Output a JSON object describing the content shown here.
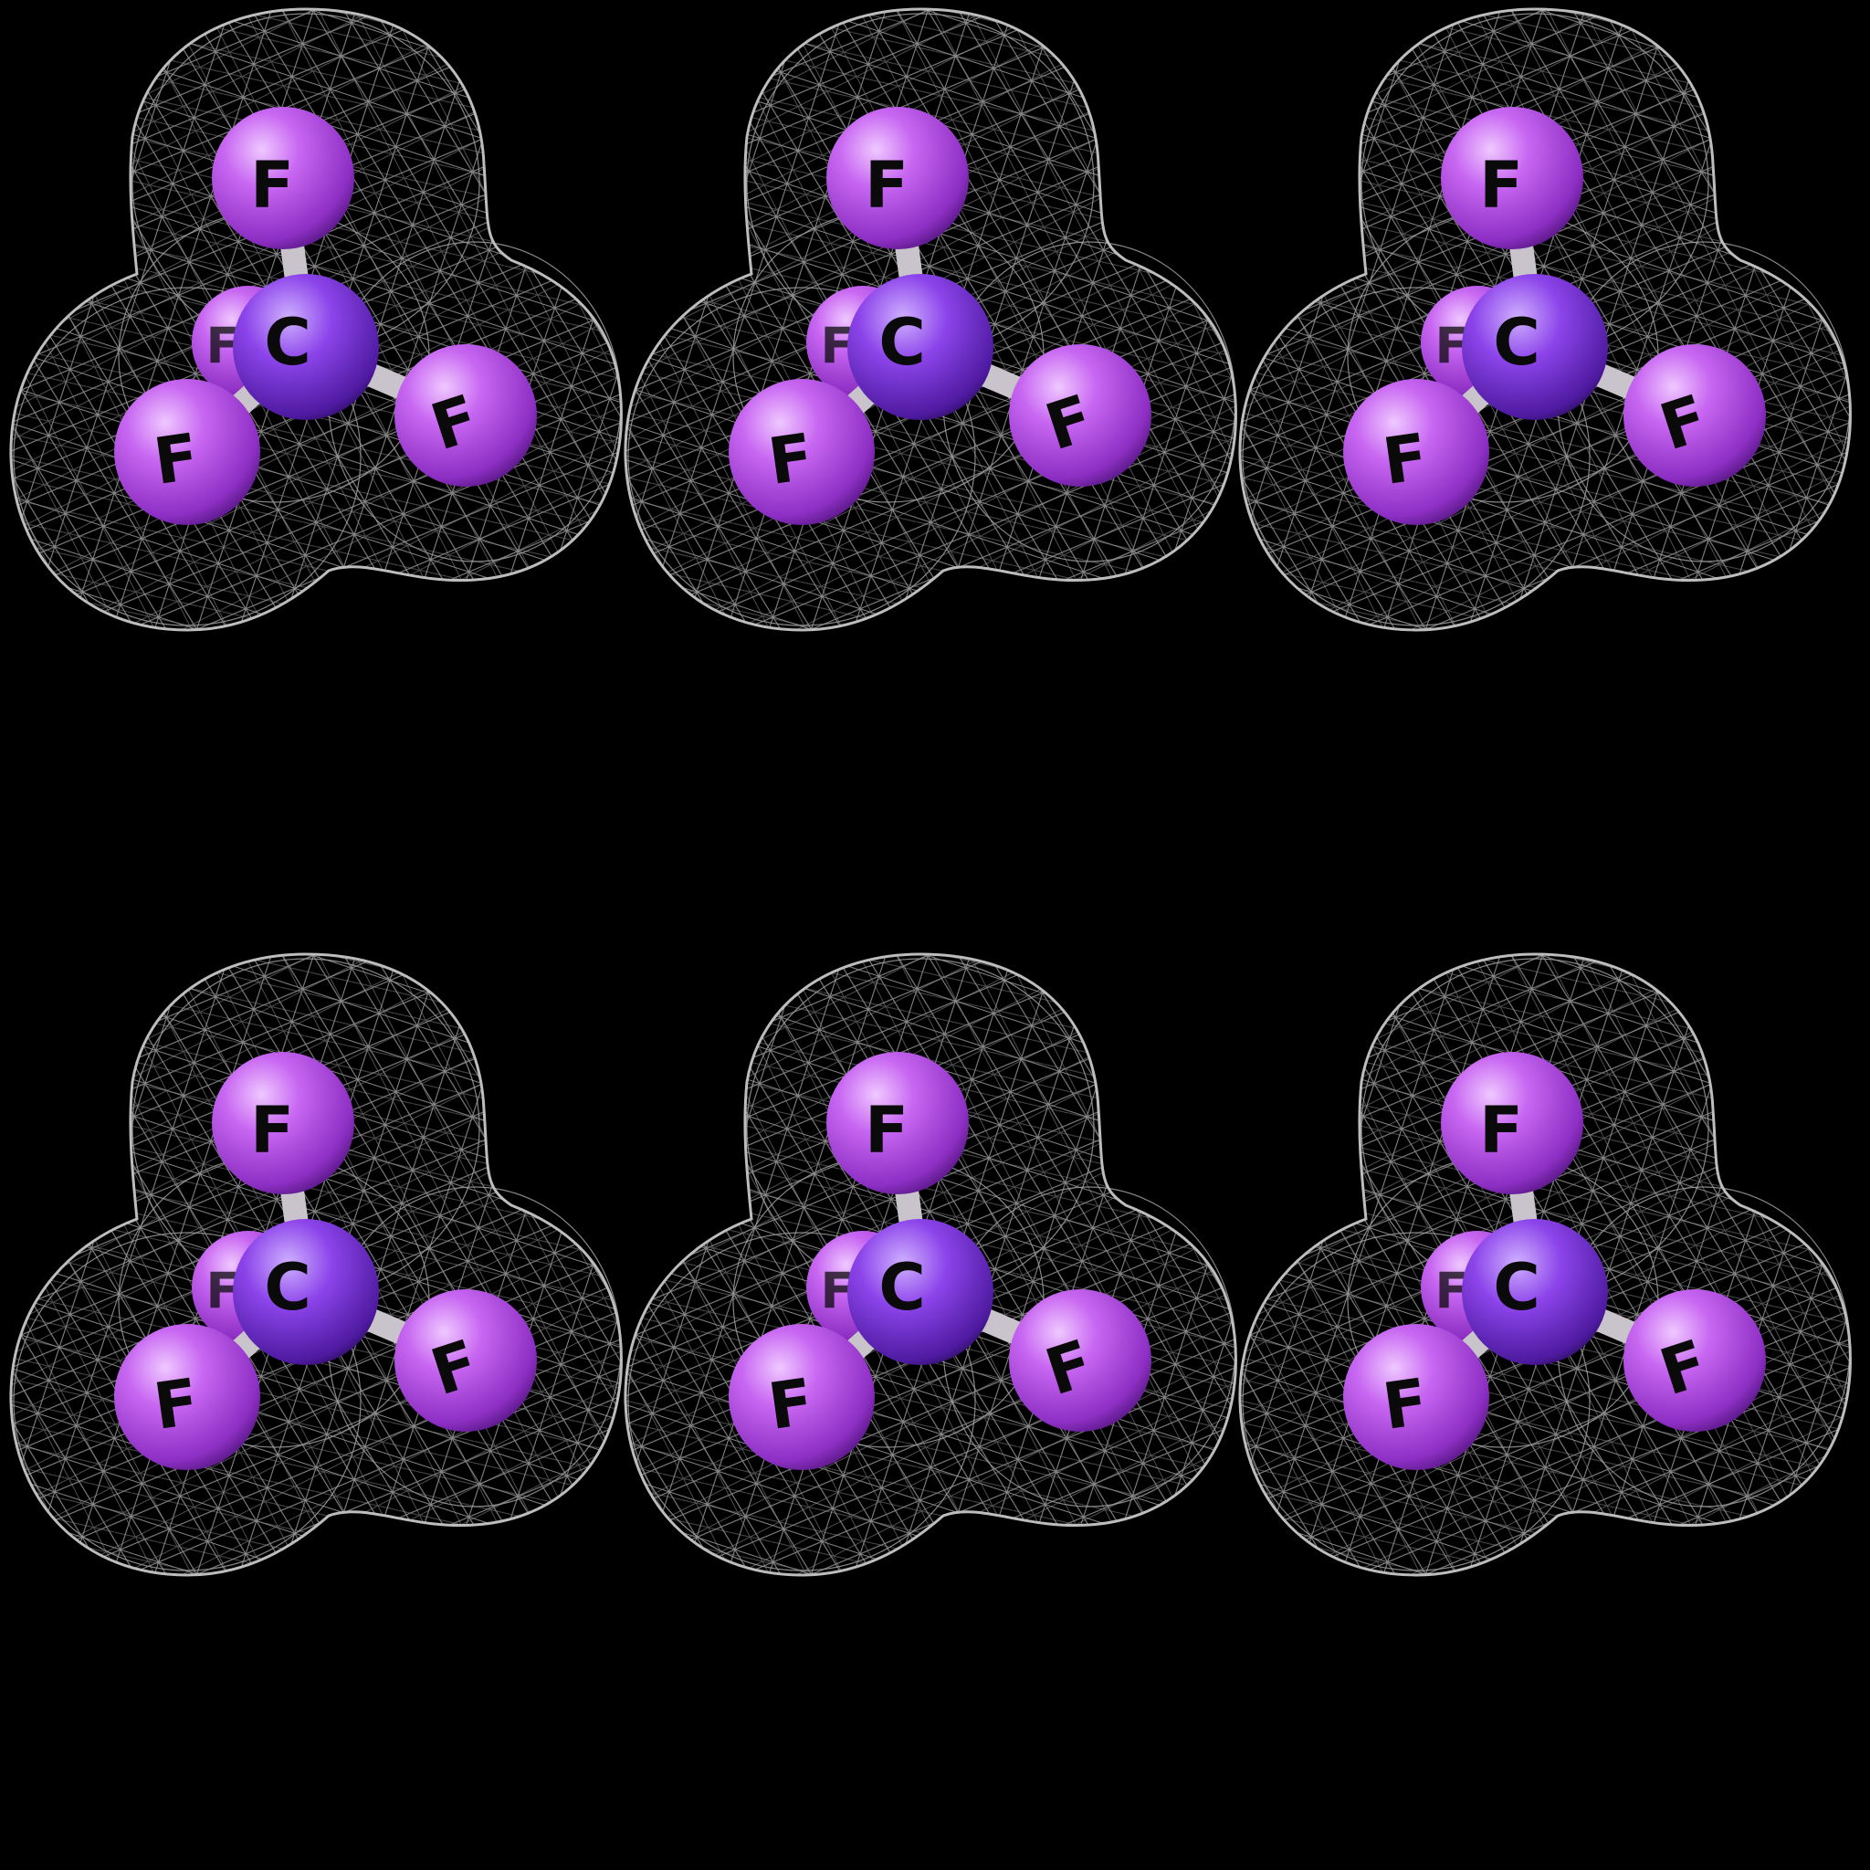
{
  "figure": {
    "background": "#000000",
    "grid": {
      "rows": 2,
      "columns": 3
    },
    "colors": {
      "fluorine": "#b84bea",
      "fluorine_highlight": "#e9b6ff",
      "carbon": "#8a3de6",
      "carbon_highlight": "#c9a2ff",
      "bond": "#c9c4cc",
      "mesh": "#a8a8a8"
    },
    "molecules": [
      {
        "central_atom": "C",
        "bonded_atoms": [
          "F",
          "F",
          "F",
          "F"
        ],
        "surface": "wireframe"
      },
      {
        "central_atom": "C",
        "bonded_atoms": [
          "F",
          "F",
          "F",
          "F"
        ],
        "surface": "wireframe"
      },
      {
        "central_atom": "C",
        "bonded_atoms": [
          "F",
          "F",
          "F",
          "F"
        ],
        "surface": "wireframe"
      },
      {
        "central_atom": "C",
        "bonded_atoms": [
          "F",
          "F",
          "F",
          "F"
        ],
        "surface": "wireframe"
      },
      {
        "central_atom": "C",
        "bonded_atoms": [
          "F",
          "F",
          "F",
          "F"
        ],
        "surface": "wireframe"
      },
      {
        "central_atom": "C",
        "bonded_atoms": [
          "F",
          "F",
          "F",
          "F"
        ],
        "surface": "wireframe"
      }
    ]
  }
}
